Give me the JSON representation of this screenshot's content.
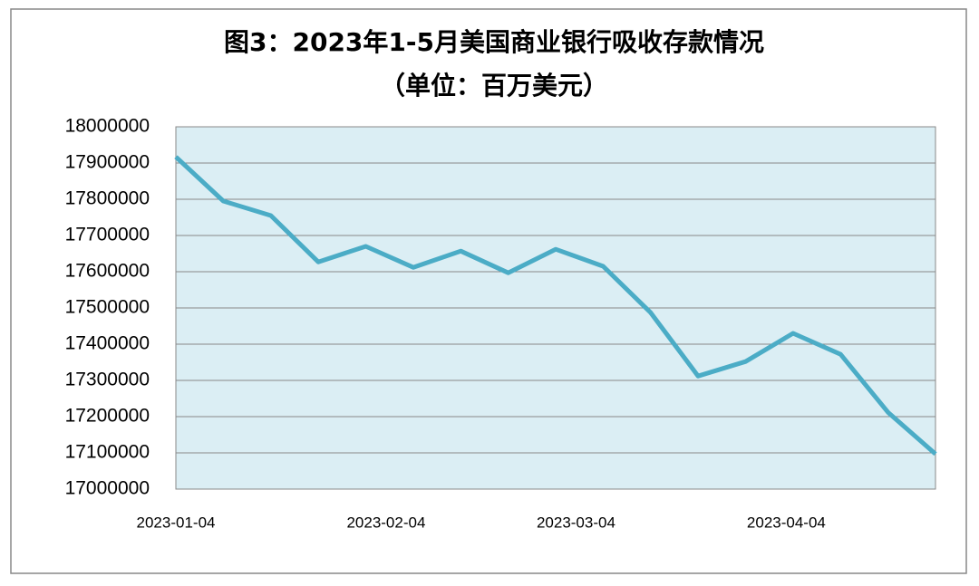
{
  "chart_data": {
    "type": "line",
    "title": "图3：2023年1-5月美国商业银行吸收存款情况",
    "subtitle": "（单位：百万美元）",
    "x": [
      "2023-01-04",
      "2023-01-11",
      "2023-01-18",
      "2023-01-25",
      "2023-02-01",
      "2023-02-08",
      "2023-02-15",
      "2023-02-22",
      "2023-03-01",
      "2023-03-08",
      "2023-03-15",
      "2023-03-22",
      "2023-03-29",
      "2023-04-05",
      "2023-04-12",
      "2023-04-19",
      "2023-04-26"
    ],
    "series": [
      {
        "name": "存款",
        "color": "#4bacc6",
        "values": [
          17917000,
          17795000,
          17755000,
          17627000,
          17670000,
          17612000,
          17657000,
          17597000,
          17662000,
          17615000,
          17487000,
          17312000,
          17352000,
          17430000,
          17372000,
          17212000,
          17097000
        ]
      }
    ],
    "xlim": [
      "2023-01-04",
      "2023-04-26"
    ],
    "xticks": [
      "2023-01-04",
      "2023-02-04",
      "2023-03-04",
      "2023-04-04"
    ],
    "ylim": [
      17000000,
      18000000
    ],
    "yticks": [
      17000000,
      17100000,
      17200000,
      17300000,
      17400000,
      17500000,
      17600000,
      17700000,
      17800000,
      17900000,
      18000000
    ],
    "grid": true,
    "plot_background": "#dbeef4"
  }
}
